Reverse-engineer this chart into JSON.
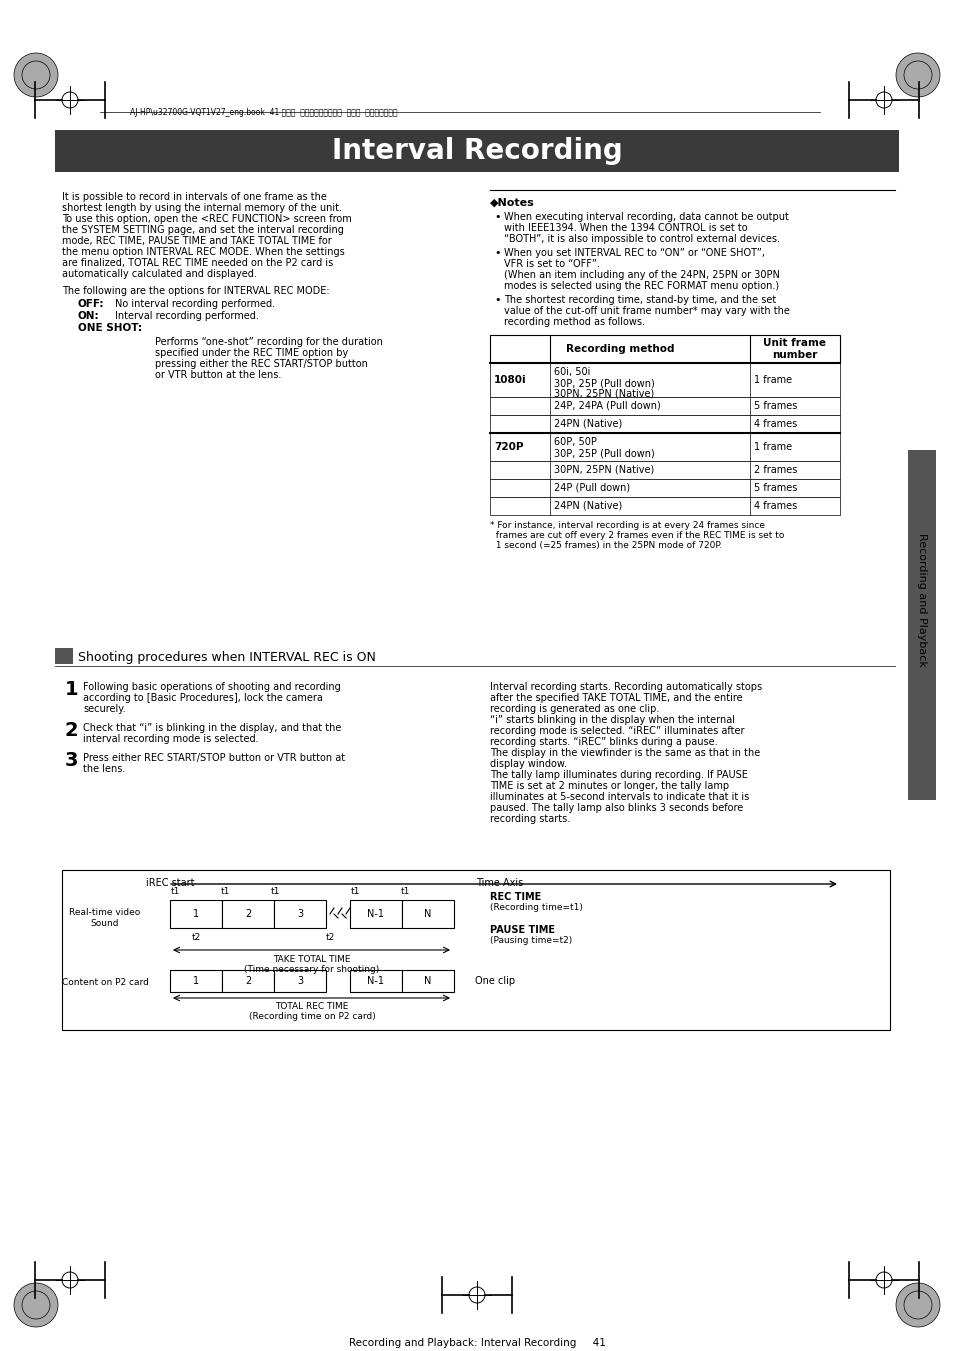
{
  "title": "Interval Recording",
  "title_bg": "#3a3a3a",
  "title_color": "#ffffff",
  "page_bg": "#ffffff",
  "header_text": "AJ-HP2002700G-VQT1V27_eng.book  41 ページ  ２００８年９月２日  火曜日  午後５時４３分",
  "left_col_text": [
    "It is possible to record in intervals of one frame as the",
    "shortest length by using the internal memory of the unit.",
    "To use this option, open the <REC FUNCTION> screen from",
    "the SYSTEM SETTING page, and set the interval recording",
    "mode, REC TIME, PAUSE TIME and TAKE TOTAL TIME for",
    "the menu option INTERVAL REC MODE. When the settings",
    "are finalized, TOTAL REC TIME needed on the P2 card is",
    "automatically calculated and displayed."
  ],
  "left_col_text2": [
    "The following are the options for INTERVAL REC MODE:"
  ],
  "options": [
    [
      "OFF:",
      "No interval recording performed."
    ],
    [
      "ON:",
      "Interval recording performed."
    ],
    [
      "ONE SHOT:",
      ""
    ]
  ],
  "one_shot_desc": [
    "Performs “one-shot” recording for the duration",
    "specified under the REC TIME option by",
    "pressing either the REC START/STOP button",
    "or VTR button at the lens."
  ],
  "notes_title": "◆Notes",
  "notes": [
    "When executing interval recording, data cannot be output\nwith IEEE1394. When the 1394 CONTROL is set to\n“BOTH”, it is also impossible to control external devices.",
    "When you set INTERVAL REC to “ON” or “ONE SHOT”,\nVFR is set to “OFF”.\n(When an item including any of the 24PN, 25PN or 30PN\nmodes is selected using the REC FORMAT menu option.)",
    "The shortest recording time, stand-by time, and the set\nvalue of the cut-off unit frame number* may vary with the\nrecording method as follows."
  ],
  "table_header": [
    "Recording method",
    "Unit frame\nnumber"
  ],
  "table_rows": [
    [
      "1080i",
      "60i, 50i\n30P, 25P (Pull down)\n30PN, 25PN (Native)",
      "1 frame"
    ],
    [
      "",
      "24P, 24PA (Pull down)",
      "5 frames"
    ],
    [
      "",
      "24PN (Native)",
      "4 frames"
    ],
    [
      "720P",
      "60P, 50P\n30P, 25P (Pull down)",
      "1 frame"
    ],
    [
      "",
      "30PN, 25PN (Native)",
      "2 frames"
    ],
    [
      "",
      "24P (Pull down)",
      "5 frames"
    ],
    [
      "",
      "24PN (Native)",
      "4 frames"
    ]
  ],
  "footnote": "* For instance, interval recording is at every 24 frames since\n  frames are cut off every 2 frames even if the REC TIME is set to\n  1 second (=25 frames) in the 25PN mode of 720P.",
  "section_title": "Shooting procedures when INTERVAL REC is ON",
  "steps": [
    [
      "1",
      "Following basic operations of shooting and recording\naccording to [Basic Procedures], lock the camera\nsecurely."
    ],
    [
      "2",
      "Check that “i” is blinking in the display, and that the\ninterval recording mode is selected."
    ],
    [
      "3",
      "Press either REC START/STOP button or VTR button at\nthe lens."
    ]
  ],
  "right_para": "Interval recording starts. Recording automatically stops\nafter the specified TAKE TOTAL TIME, and the entire\nrecording is generated as one clip.\n“i” starts blinking in the display when the internal\nrecording mode is selected. “iREC” illuminates after\nrecording starts. “iREC” blinks during a pause.\nThe display in the viewfinder is the same as that in the\ndisplay window.\nThe tally lamp illuminates during recording. If PAUSE\nTIME is set at 2 minutes or longer, the tally lamp\nilluminates at 5-second intervals to indicate that it is\npaused. The tally lamp also blinks 3 seconds before\nrecording starts.",
  "sidebar_text": "Recording and Playback",
  "bottom_text": "Recording and Playback: Interval Recording     41",
  "diagram_labels": {
    "irec_start": "iREC start",
    "time_axis": "Time Axis",
    "realtime_video": "Real-time video\nSound",
    "rec_time": "REC TIME\n(Recording time=t1)",
    "pause_time": "PAUSE TIME\n(Pausing time=t2)",
    "take_total_time": "TAKE TOTAL TIME\n(Time necessary for shooting)",
    "content_p2": "Content on P2 card",
    "one_clip": "One clip",
    "total_rec_time": "TOTAL REC TIME\n(Recording time on P2 card)"
  }
}
